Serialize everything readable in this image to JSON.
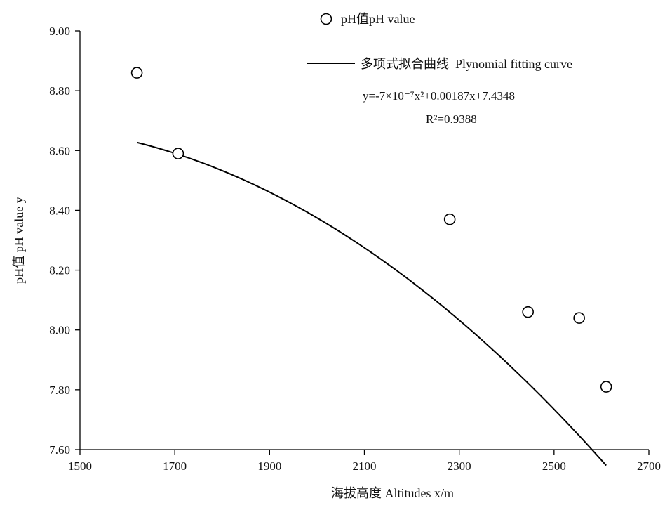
{
  "chart_data": {
    "type": "scatter",
    "title": "",
    "xlabel": "海拔高度 Altitudes  x/m",
    "ylabel": "pH值 pH value y",
    "xlim": [
      1500,
      2700
    ],
    "ylim": [
      7.6,
      9.0
    ],
    "x_ticks": [
      "1500",
      "1700",
      "1900",
      "2100",
      "2300",
      "2500",
      "2700"
    ],
    "y_ticks": [
      "7.60",
      "7.80",
      "8.00",
      "8.20",
      "8.40",
      "8.60",
      "8.80",
      "9.00"
    ],
    "grid": false,
    "series": [
      {
        "name": "pH值pH value",
        "kind": "scatter",
        "marker": "open-circle",
        "x": [
          1620,
          1707,
          2280,
          2445,
          2553,
          2610
        ],
        "y": [
          8.86,
          8.59,
          8.37,
          8.06,
          8.04,
          7.81
        ]
      },
      {
        "name": "多项式拟合曲线  Plynomial fitting curve",
        "kind": "line",
        "equation": {
          "a": -7e-07,
          "b": 0.00187,
          "c": 7.4348
        },
        "x_range": [
          1620,
          2610
        ]
      }
    ],
    "annotations": {
      "equation_label": "y=-7×10⁻⁷x²+0.00187x+7.4348",
      "r2_label": "R²=0.9388"
    },
    "legend_position": "top-right",
    "colors": {
      "marker_fill": "#ffffff",
      "stroke": "#000000"
    }
  }
}
